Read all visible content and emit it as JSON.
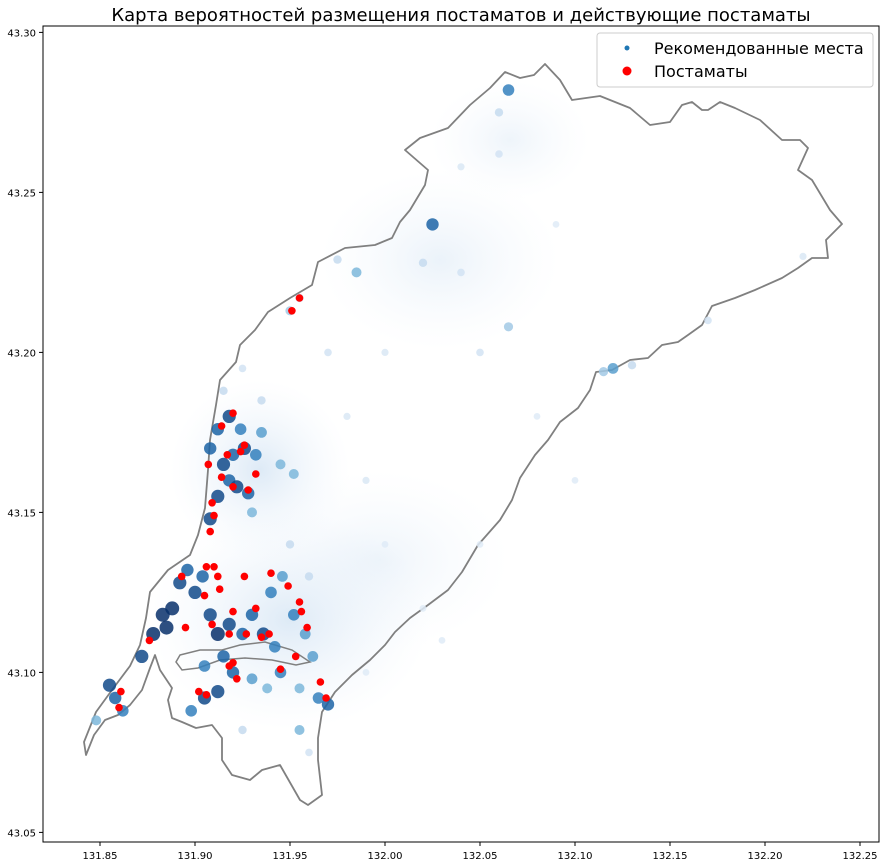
{
  "chart_data": {
    "type": "scatter",
    "title": "Карта вероятностей размещения постаматов и действующие постаматы",
    "xlabel": "",
    "ylabel": "",
    "xlim": [
      131.82,
      132.26
    ],
    "ylim": [
      43.047,
      43.302
    ],
    "x_ticks": [
      "131.85",
      "131.90",
      "131.95",
      "132.00",
      "132.05",
      "132.10",
      "132.15",
      "132.20",
      "132.25"
    ],
    "y_ticks": [
      "43.05",
      "43.10",
      "43.15",
      "43.20",
      "43.25",
      "43.30"
    ],
    "grid": false,
    "legend": "upper-right",
    "series": [
      {
        "name": "Рекомендованные места",
        "color": "#1f77b4",
        "colormap": "Blues",
        "points": [
          [
            131.855,
            43.096,
            0.9
          ],
          [
            131.858,
            43.092,
            0.8
          ],
          [
            131.862,
            43.088,
            0.7
          ],
          [
            131.848,
            43.085,
            0.5
          ],
          [
            131.872,
            43.105,
            0.9
          ],
          [
            131.878,
            43.112,
            1.0
          ],
          [
            131.883,
            43.118,
            1.0
          ],
          [
            131.888,
            43.12,
            1.0
          ],
          [
            131.885,
            43.114,
            1.0
          ],
          [
            131.892,
            43.128,
            0.9
          ],
          [
            131.896,
            43.132,
            0.8
          ],
          [
            131.9,
            43.125,
            0.9
          ],
          [
            131.904,
            43.13,
            0.8
          ],
          [
            131.908,
            43.118,
            0.9
          ],
          [
            131.912,
            43.112,
            1.0
          ],
          [
            131.918,
            43.115,
            0.9
          ],
          [
            131.925,
            43.112,
            0.8
          ],
          [
            131.93,
            43.118,
            0.8
          ],
          [
            131.936,
            43.112,
            0.9
          ],
          [
            131.942,
            43.108,
            0.7
          ],
          [
            131.94,
            43.125,
            0.7
          ],
          [
            131.946,
            43.13,
            0.6
          ],
          [
            131.952,
            43.118,
            0.7
          ],
          [
            131.958,
            43.112,
            0.6
          ],
          [
            131.962,
            43.105,
            0.6
          ],
          [
            131.945,
            43.1,
            0.7
          ],
          [
            131.938,
            43.095,
            0.5
          ],
          [
            131.93,
            43.098,
            0.6
          ],
          [
            131.92,
            43.1,
            0.8
          ],
          [
            131.912,
            43.094,
            0.9
          ],
          [
            131.905,
            43.092,
            0.9
          ],
          [
            131.898,
            43.088,
            0.7
          ],
          [
            131.905,
            43.102,
            0.7
          ],
          [
            131.915,
            43.105,
            0.8
          ],
          [
            131.955,
            43.095,
            0.5
          ],
          [
            131.965,
            43.092,
            0.7
          ],
          [
            131.97,
            43.09,
            0.8
          ],
          [
            131.955,
            43.082,
            0.5
          ],
          [
            131.925,
            43.082,
            0.3
          ],
          [
            131.908,
            43.148,
            0.9
          ],
          [
            131.912,
            43.155,
            0.9
          ],
          [
            131.918,
            43.16,
            0.8
          ],
          [
            131.922,
            43.158,
            0.9
          ],
          [
            131.928,
            43.156,
            0.8
          ],
          [
            131.915,
            43.165,
            0.9
          ],
          [
            131.92,
            43.168,
            0.8
          ],
          [
            131.926,
            43.17,
            0.9
          ],
          [
            131.932,
            43.168,
            0.7
          ],
          [
            131.908,
            43.17,
            0.8
          ],
          [
            131.912,
            43.176,
            0.8
          ],
          [
            131.918,
            43.18,
            0.9
          ],
          [
            131.924,
            43.176,
            0.7
          ],
          [
            131.935,
            43.175,
            0.6
          ],
          [
            131.945,
            43.165,
            0.5
          ],
          [
            131.952,
            43.162,
            0.5
          ],
          [
            131.93,
            43.15,
            0.5
          ],
          [
            131.95,
            43.14,
            0.3
          ],
          [
            131.96,
            43.13,
            0.3
          ],
          [
            131.935,
            43.185,
            0.3
          ],
          [
            131.915,
            43.188,
            0.3
          ],
          [
            131.925,
            43.195,
            0.2
          ],
          [
            131.95,
            43.213,
            0.4
          ],
          [
            131.955,
            43.217,
            0.3
          ],
          [
            131.97,
            43.2,
            0.2
          ],
          [
            131.98,
            43.18,
            0.15
          ],
          [
            131.99,
            43.16,
            0.15
          ],
          [
            132.0,
            43.14,
            0.1
          ],
          [
            132.02,
            43.12,
            0.1
          ],
          [
            131.985,
            43.225,
            0.5
          ],
          [
            131.975,
            43.229,
            0.3
          ],
          [
            132.025,
            43.24,
            0.8
          ],
          [
            132.02,
            43.228,
            0.3
          ],
          [
            132.04,
            43.225,
            0.2
          ],
          [
            132.065,
            43.282,
            0.7
          ],
          [
            132.06,
            43.275,
            0.3
          ],
          [
            132.06,
            43.262,
            0.2
          ],
          [
            132.04,
            43.258,
            0.15
          ],
          [
            132.05,
            43.2,
            0.2
          ],
          [
            132.08,
            43.18,
            0.1
          ],
          [
            132.12,
            43.195,
            0.6
          ],
          [
            132.115,
            43.194,
            0.4
          ],
          [
            132.13,
            43.196,
            0.3
          ],
          [
            132.065,
            43.208,
            0.4
          ],
          [
            132.17,
            43.21,
            0.2
          ],
          [
            132.22,
            43.23,
            0.15
          ],
          [
            132.1,
            43.16,
            0.1
          ],
          [
            132.05,
            43.14,
            0.1
          ],
          [
            132.03,
            43.11,
            0.1
          ],
          [
            131.99,
            43.1,
            0.1
          ],
          [
            132.0,
            43.2,
            0.15
          ],
          [
            132.09,
            43.24,
            0.1
          ],
          [
            131.96,
            43.075,
            0.2
          ]
        ]
      },
      {
        "name": "Постаматы",
        "color": "#ff0000",
        "points": [
          [
            131.955,
            43.217
          ],
          [
            131.951,
            43.213
          ],
          [
            131.92,
            43.181
          ],
          [
            131.914,
            43.177
          ],
          [
            131.926,
            43.171
          ],
          [
            131.917,
            43.168
          ],
          [
            131.924,
            43.169
          ],
          [
            131.907,
            43.165
          ],
          [
            131.932,
            43.162
          ],
          [
            131.914,
            43.161
          ],
          [
            131.92,
            43.158
          ],
          [
            131.928,
            43.157
          ],
          [
            131.909,
            43.153
          ],
          [
            131.91,
            43.149
          ],
          [
            131.908,
            43.144
          ],
          [
            131.906,
            43.133
          ],
          [
            131.91,
            43.133
          ],
          [
            131.94,
            43.131
          ],
          [
            131.893,
            43.13
          ],
          [
            131.912,
            43.13
          ],
          [
            131.926,
            43.13
          ],
          [
            131.949,
            43.127
          ],
          [
            131.913,
            43.126
          ],
          [
            131.905,
            43.124
          ],
          [
            131.955,
            43.122
          ],
          [
            131.92,
            43.119
          ],
          [
            131.932,
            43.12
          ],
          [
            131.956,
            43.119
          ],
          [
            131.909,
            43.115
          ],
          [
            131.895,
            43.114
          ],
          [
            131.959,
            43.114
          ],
          [
            131.876,
            43.11
          ],
          [
            131.918,
            43.112
          ],
          [
            131.927,
            43.112
          ],
          [
            131.935,
            43.111
          ],
          [
            131.939,
            43.112
          ],
          [
            131.953,
            43.105
          ],
          [
            131.945,
            43.101
          ],
          [
            131.918,
            43.102
          ],
          [
            131.922,
            43.098
          ],
          [
            131.966,
            43.097
          ],
          [
            131.861,
            43.094
          ],
          [
            131.902,
            43.094
          ],
          [
            131.906,
            43.093
          ],
          [
            131.969,
            43.092
          ],
          [
            131.86,
            43.089
          ],
          [
            131.92,
            43.103
          ]
        ]
      }
    ]
  }
}
